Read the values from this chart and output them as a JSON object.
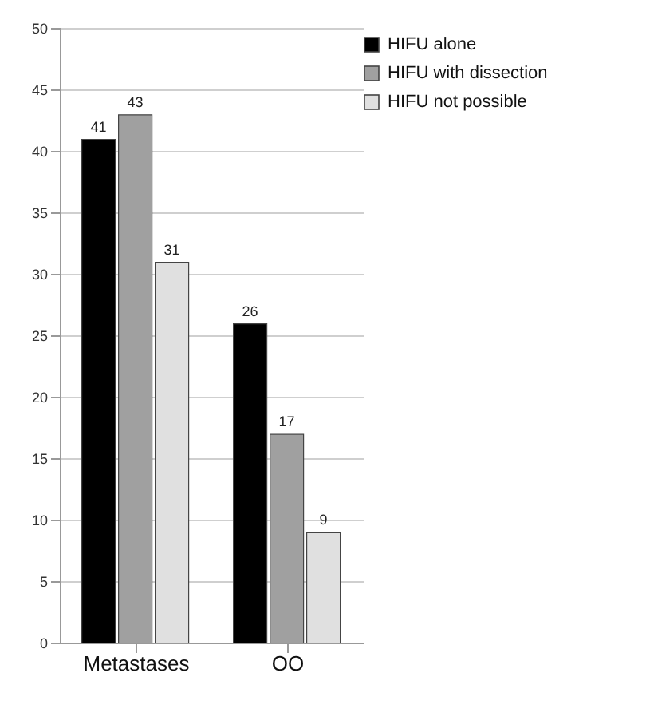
{
  "chart_data": {
    "type": "bar",
    "categories": [
      "Metastases",
      "OO"
    ],
    "series": [
      {
        "name": "HIFU alone",
        "color": "#000000",
        "values": [
          41,
          26
        ]
      },
      {
        "name": "HIFU with dissection",
        "color": "#a0a0a0",
        "values": [
          43,
          17
        ]
      },
      {
        "name": "HIFU not possible",
        "color": "#e0e0e0",
        "values": [
          31,
          9
        ]
      }
    ],
    "ylim": [
      0,
      50
    ],
    "yticks": [
      0,
      5,
      10,
      15,
      20,
      25,
      30,
      35,
      40,
      45,
      50
    ],
    "grid": "y",
    "legend": "top right",
    "data_labels": true
  }
}
